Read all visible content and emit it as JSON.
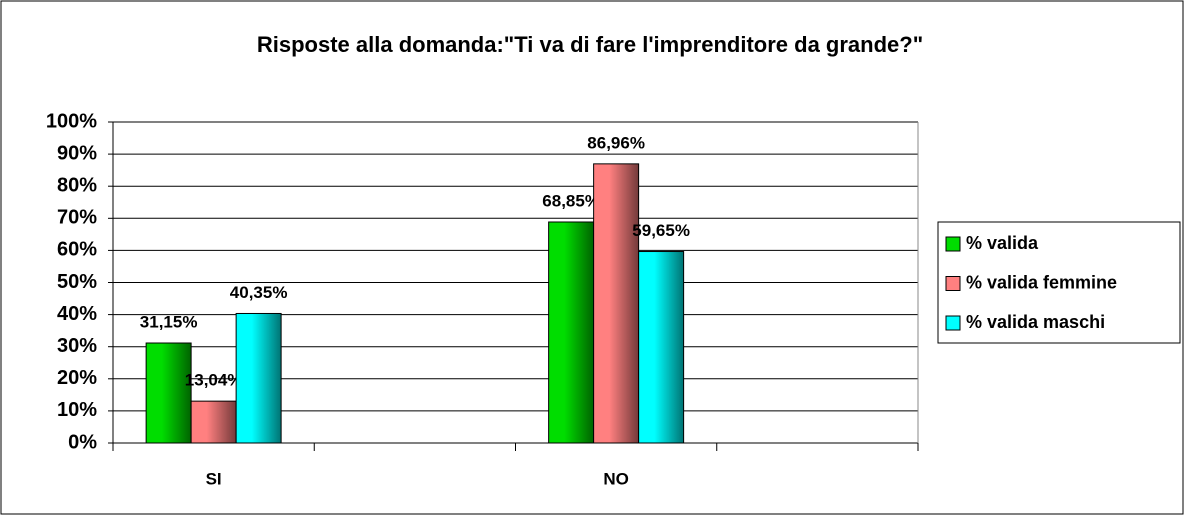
{
  "chart_data": {
    "type": "bar",
    "title": "Risposte alla domanda:\"Ti va di fare l'imprenditore da grande?\"",
    "categories": [
      "SI",
      null,
      "NO",
      null
    ],
    "series": [
      {
        "name": "% valida",
        "color": "#00dd00",
        "values": [
          31.15,
          null,
          68.85,
          null
        ],
        "value_labels": [
          "31,15%",
          null,
          "68,85%",
          null
        ]
      },
      {
        "name": "% valida femmine",
        "color": "#ff8080",
        "values": [
          13.04,
          null,
          86.96,
          null
        ],
        "value_labels": [
          "13,04%",
          null,
          "86,96%",
          null
        ]
      },
      {
        "name": "% valida maschi",
        "color": "#00ffff",
        "values": [
          40.35,
          null,
          59.65,
          null
        ],
        "value_labels": [
          "40,35%",
          null,
          "59,65%",
          null
        ]
      }
    ],
    "ylim": [
      0,
      100
    ],
    "yticks": [
      {
        "value": 0,
        "label": "0%"
      },
      {
        "value": 10,
        "label": "10%"
      },
      {
        "value": 20,
        "label": "20%"
      },
      {
        "value": 30,
        "label": "30%"
      },
      {
        "value": 40,
        "label": "40%"
      },
      {
        "value": 50,
        "label": "50%"
      },
      {
        "value": 60,
        "label": "60%"
      },
      {
        "value": 70,
        "label": "70%"
      },
      {
        "value": 80,
        "label": "80%"
      },
      {
        "value": 90,
        "label": "90%"
      },
      {
        "value": 100,
        "label": "100%"
      }
    ],
    "grid": true,
    "legend": "right"
  }
}
